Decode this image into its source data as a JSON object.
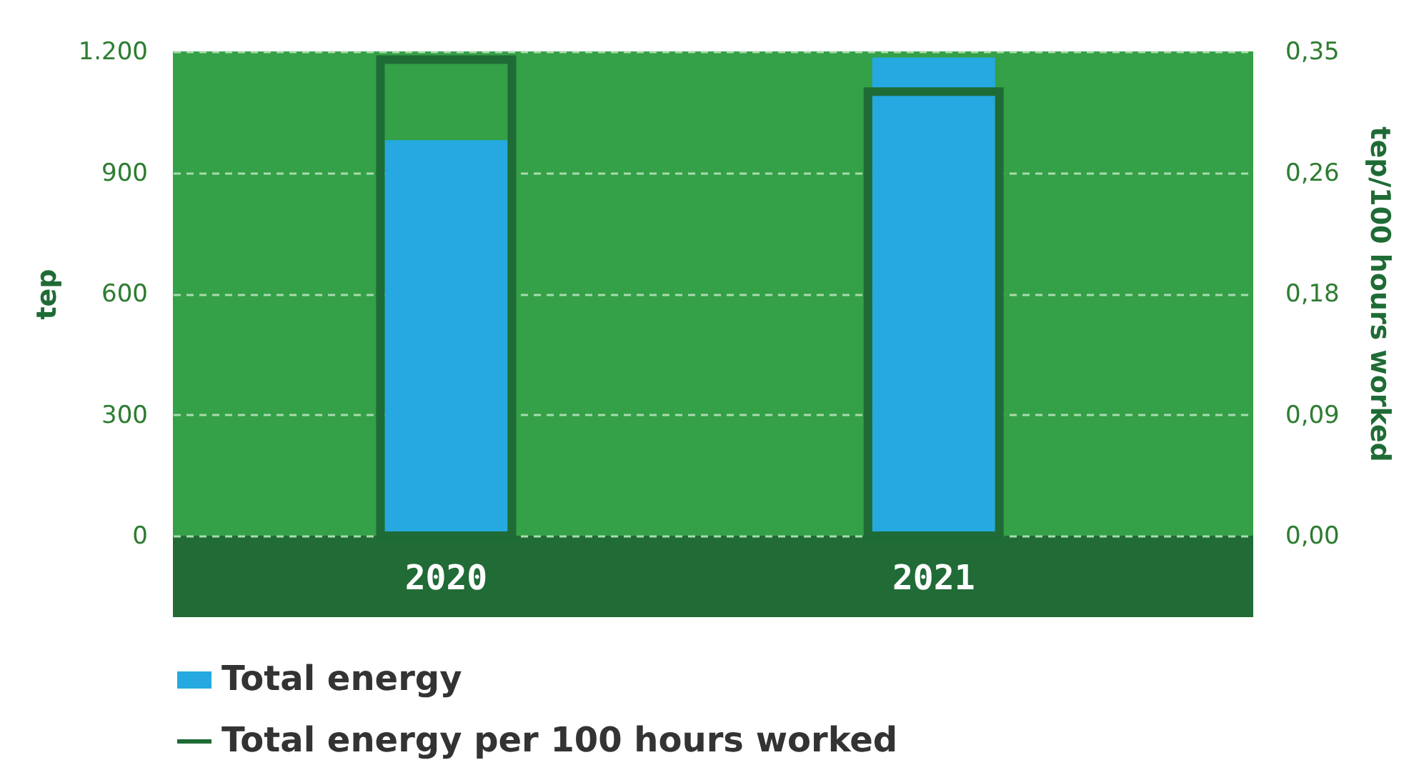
{
  "chart_data": {
    "type": "bar",
    "categories": [
      "2020",
      "2021"
    ],
    "ylabel": "tep",
    "y2label": "tep/100 hours worked",
    "ylim": [
      0,
      1200
    ],
    "yticks": [
      0,
      300,
      600,
      900,
      {
        "value": 1200,
        "label": "1.200"
      }
    ],
    "y2lim": [
      0,
      0.35
    ],
    "y2ticks": [
      {
        "value": 0,
        "label": "0,00"
      },
      {
        "value": 0.0875,
        "label": "0,09"
      },
      {
        "value": 0.175,
        "label": "0,18"
      },
      {
        "value": 0.2625,
        "label": "0,26"
      },
      {
        "value": 0.35,
        "label": "0,35"
      }
    ],
    "series": [
      {
        "name": "Total energy",
        "color": "#25a9e0",
        "values": [
          980,
          1185
        ]
      },
      {
        "name": "Total energy per 100 hours worked",
        "color": "#1f6b35",
        "values": [
          0.344,
          0.321
        ],
        "axis": "y2"
      }
    ],
    "grid": "y",
    "legend": "bottom left"
  }
}
